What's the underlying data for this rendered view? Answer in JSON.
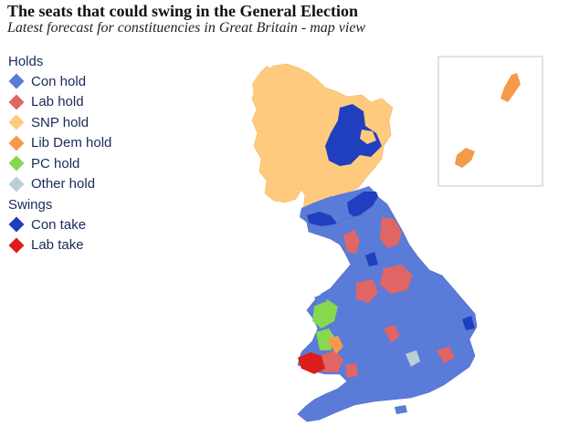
{
  "header": {
    "title": "The seats that could swing in the General Election",
    "subtitle": "Latest forecast for constituencies in Great Britain - map view"
  },
  "legend": {
    "holds_heading": "Holds",
    "holds": [
      {
        "label": "Con hold",
        "color": "#5b7bd9"
      },
      {
        "label": "Lab hold",
        "color": "#e06565"
      },
      {
        "label": "SNP hold",
        "color": "#fdca7e"
      },
      {
        "label": "Lib Dem hold",
        "color": "#f59a4a"
      },
      {
        "label": "PC hold",
        "color": "#86d94e"
      },
      {
        "label": "Other hold",
        "color": "#b8cfd8"
      }
    ],
    "swings_heading": "Swings",
    "swings": [
      {
        "label": "Con take",
        "color": "#1f3fbf"
      },
      {
        "label": "Lab take",
        "color": "#dd1c1c"
      }
    ]
  }
}
